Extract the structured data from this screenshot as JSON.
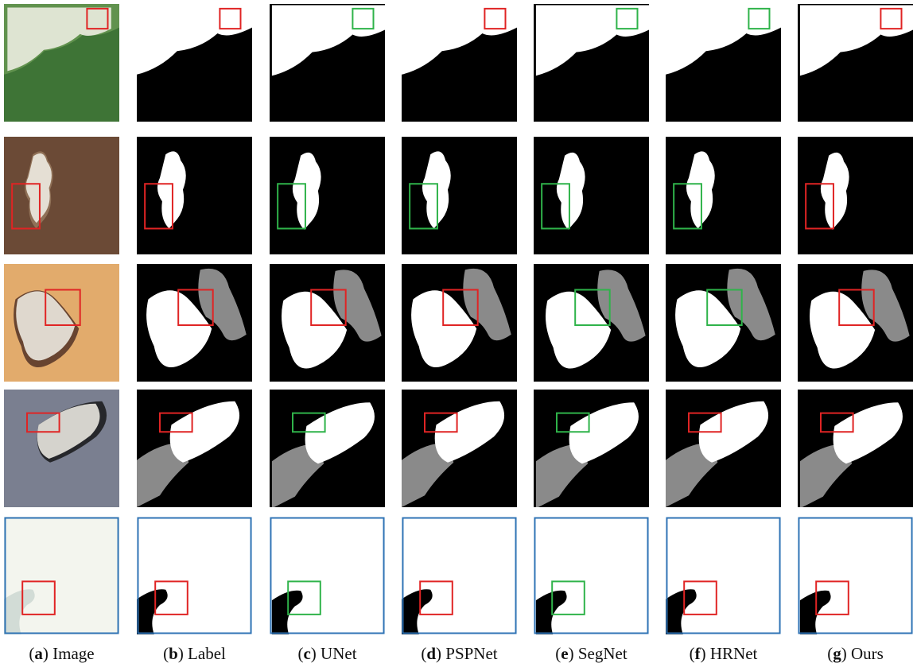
{
  "captions": [
    {
      "parts": [
        "(",
        "a",
        ") Image"
      ]
    },
    {
      "parts": [
        "(",
        "b",
        ") Label"
      ]
    },
    {
      "parts": [
        "(",
        "c",
        ") UNet"
      ]
    },
    {
      "parts": [
        "(",
        "d",
        ") PSPNet"
      ]
    },
    {
      "parts": [
        "(",
        "e",
        ") SegNet"
      ]
    },
    {
      "parts": [
        "(",
        "f",
        ") HRNet"
      ]
    },
    {
      "parts": [
        "(",
        "g",
        ") Ours"
      ]
    }
  ]
}
